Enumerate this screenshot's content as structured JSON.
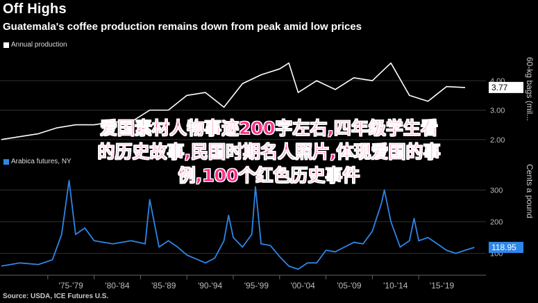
{
  "header": {
    "title": "Off Highs",
    "subtitle": "Guatemala's coffee production remains down from peak amid low prices"
  },
  "source": "Source: USDA, ICE Futures U.S.",
  "overlay_text": "爱国素材人物事迹200字左右,四年级学生看\n的历史故事,民国时期名人照片,体现爱国的事\n例,100个红色历史事件",
  "colors": {
    "production": "#ffffff",
    "futures": "#2f86e8",
    "grid": "#333333"
  },
  "chart_data": [
    {
      "type": "line",
      "legend": "Annual production",
      "ylabel": "60-kg bags (mil...",
      "yticks": [
        "2.00",
        "3.00",
        "4.00"
      ],
      "ylim": [
        1.5,
        4.9
      ],
      "last_value_label": "3.77",
      "series": [
        {
          "name": "Annual production",
          "x": [
            1970,
            1972,
            1974,
            1976,
            1978,
            1980,
            1982,
            1984,
            1986,
            1988,
            1990,
            1992,
            1994,
            1996,
            1998,
            2000,
            2001,
            2002,
            2004,
            2006,
            2008,
            2010,
            2012,
            2014,
            2016,
            2018,
            2020
          ],
          "values": [
            2.0,
            2.1,
            2.2,
            2.4,
            2.5,
            2.5,
            2.6,
            2.6,
            3.0,
            3.0,
            3.5,
            3.6,
            3.1,
            3.9,
            4.2,
            4.4,
            4.6,
            3.6,
            4.0,
            3.7,
            4.1,
            4.0,
            4.6,
            3.5,
            3.3,
            3.8,
            3.77
          ]
        }
      ]
    },
    {
      "type": "line",
      "legend": "Arabica futures, NY",
      "ylabel": "Cents a pound",
      "yticks": [
        "100",
        "200",
        "300"
      ],
      "ylim": [
        40,
        360
      ],
      "last_value_label": "118.95",
      "xticks": [
        "'75-'79",
        "'80-'84",
        "'85-'89",
        "'90-'94",
        "'95-'99",
        "'00-'04",
        "'05-'09",
        "'10-'14",
        "'15-'19"
      ],
      "series": [
        {
          "name": "Arabica futures, NY",
          "x": [
            1970,
            1972,
            1974,
            1975.5,
            1976.5,
            1977.3,
            1978,
            1979,
            1980,
            1982,
            1984,
            1985.5,
            1986,
            1987,
            1988,
            1989,
            1990,
            1992,
            1993,
            1994,
            1994.5,
            1995,
            1996,
            1997,
            1997.4,
            1998,
            1999,
            2000,
            2001,
            2002,
            2003,
            2004,
            2005,
            2006,
            2007,
            2008,
            2009,
            2010,
            2011,
            2011.3,
            2012,
            2013,
            2014,
            2014.5,
            2015,
            2016,
            2017,
            2018,
            2019,
            2020,
            2021
          ],
          "values": [
            60,
            70,
            65,
            80,
            160,
            330,
            160,
            180,
            140,
            130,
            140,
            130,
            270,
            120,
            140,
            120,
            95,
            70,
            85,
            140,
            220,
            150,
            120,
            160,
            310,
            130,
            125,
            90,
            60,
            50,
            70,
            70,
            110,
            105,
            120,
            135,
            130,
            170,
            260,
            300,
            200,
            120,
            140,
            210,
            140,
            150,
            130,
            110,
            100,
            110,
            118.95
          ]
        }
      ]
    }
  ]
}
